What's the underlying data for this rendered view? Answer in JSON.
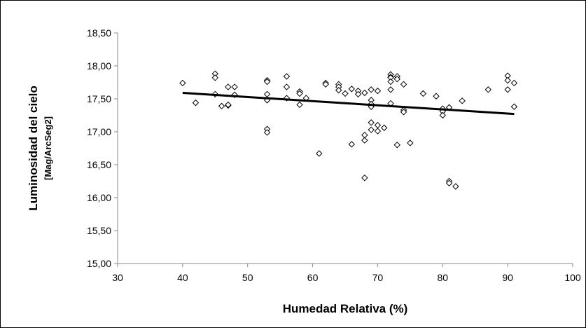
{
  "chart_data": {
    "type": "scatter",
    "xlabel": "Humedad Relativa (%)",
    "ylabel": "Luminosidad del cielo",
    "ylabel_unit": "[Mag/ArcSeg2]",
    "xlim": [
      30,
      100
    ],
    "ylim": [
      15.0,
      18.5
    ],
    "x_ticks": [
      "30",
      "40",
      "50",
      "60",
      "70",
      "80",
      "90",
      "100"
    ],
    "y_ticks": [
      "15,00",
      "15,50",
      "16,00",
      "16,50",
      "17,00",
      "17,50",
      "18,00",
      "18,50"
    ],
    "grid": false,
    "legend": "none",
    "marker": "hollow-diamond",
    "trendline": {
      "x": [
        40,
        91
      ],
      "y": [
        17.59,
        17.27
      ]
    },
    "points": [
      [
        40,
        17.74
      ],
      [
        42,
        17.44
      ],
      [
        45,
        17.88
      ],
      [
        45,
        17.82
      ],
      [
        45,
        17.57
      ],
      [
        46,
        17.39
      ],
      [
        47,
        17.4
      ],
      [
        47,
        17.68
      ],
      [
        47,
        17.41
      ],
      [
        48,
        17.68
      ],
      [
        48,
        17.56
      ],
      [
        53,
        17.78
      ],
      [
        53,
        17.76
      ],
      [
        53,
        17.57
      ],
      [
        53,
        17.04
      ],
      [
        53,
        16.99
      ],
      [
        53,
        17.48
      ],
      [
        56,
        17.84
      ],
      [
        56,
        17.68
      ],
      [
        56,
        17.51
      ],
      [
        58,
        17.61
      ],
      [
        58,
        17.58
      ],
      [
        58,
        17.41
      ],
      [
        59,
        17.51
      ],
      [
        61,
        16.67
      ],
      [
        62,
        17.74
      ],
      [
        62,
        17.72
      ],
      [
        64,
        17.72
      ],
      [
        64,
        17.68
      ],
      [
        64,
        17.63
      ],
      [
        65,
        17.58
      ],
      [
        66,
        17.65
      ],
      [
        66,
        16.81
      ],
      [
        67,
        17.62
      ],
      [
        67,
        17.57
      ],
      [
        68,
        17.59
      ],
      [
        68,
        16.95
      ],
      [
        68,
        16.87
      ],
      [
        68,
        16.3
      ],
      [
        69,
        17.64
      ],
      [
        69,
        17.48
      ],
      [
        69,
        17.42
      ],
      [
        69,
        17.38
      ],
      [
        69,
        17.14
      ],
      [
        69,
        17.03
      ],
      [
        70,
        17.62
      ],
      [
        70,
        17.1
      ],
      [
        70,
        17.01
      ],
      [
        71,
        17.06
      ],
      [
        72,
        17.87
      ],
      [
        72,
        17.83
      ],
      [
        72,
        17.82
      ],
      [
        72,
        17.76
      ],
      [
        72,
        17.64
      ],
      [
        72,
        17.43
      ],
      [
        73,
        17.84
      ],
      [
        73,
        17.8
      ],
      [
        73,
        16.8
      ],
      [
        74,
        17.72
      ],
      [
        74,
        17.33
      ],
      [
        74,
        17.3
      ],
      [
        75,
        16.83
      ],
      [
        77,
        17.58
      ],
      [
        79,
        17.54
      ],
      [
        80,
        17.35
      ],
      [
        80,
        17.31
      ],
      [
        80,
        17.25
      ],
      [
        81,
        17.37
      ],
      [
        81,
        16.25
      ],
      [
        81,
        16.22
      ],
      [
        82,
        16.17
      ],
      [
        83,
        17.47
      ],
      [
        87,
        17.64
      ],
      [
        90,
        17.85
      ],
      [
        90,
        17.78
      ],
      [
        90,
        17.64
      ],
      [
        91,
        17.74
      ],
      [
        91,
        17.38
      ]
    ]
  }
}
